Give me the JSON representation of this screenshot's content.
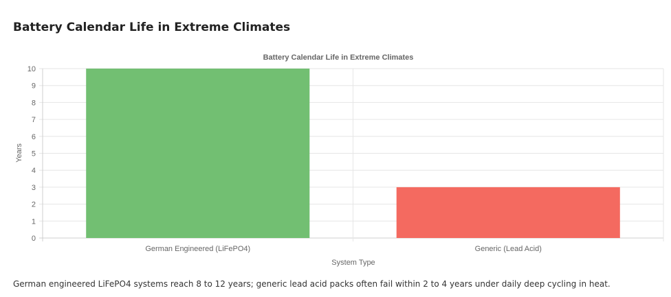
{
  "page": {
    "heading": "Battery Calendar Life in Extreme Climates",
    "caption": "German engineered LiFePO4 systems reach 8 to 12 years; generic lead acid packs often fail within 2 to 4 years under daily deep cycling in heat."
  },
  "chart_data": {
    "type": "bar",
    "title": "Battery Calendar Life in Extreme Climates",
    "xlabel": "System Type",
    "ylabel": "Years",
    "categories": [
      "German Engineered (LiFePO4)",
      "Generic (Lead Acid)"
    ],
    "values": [
      10,
      3
    ],
    "colors": [
      "#72bf72",
      "#f46a60"
    ],
    "ylim": [
      0,
      10
    ],
    "yticks": [
      0,
      1,
      2,
      3,
      4,
      5,
      6,
      7,
      8,
      9,
      10
    ],
    "grid": true,
    "legend": "none"
  }
}
